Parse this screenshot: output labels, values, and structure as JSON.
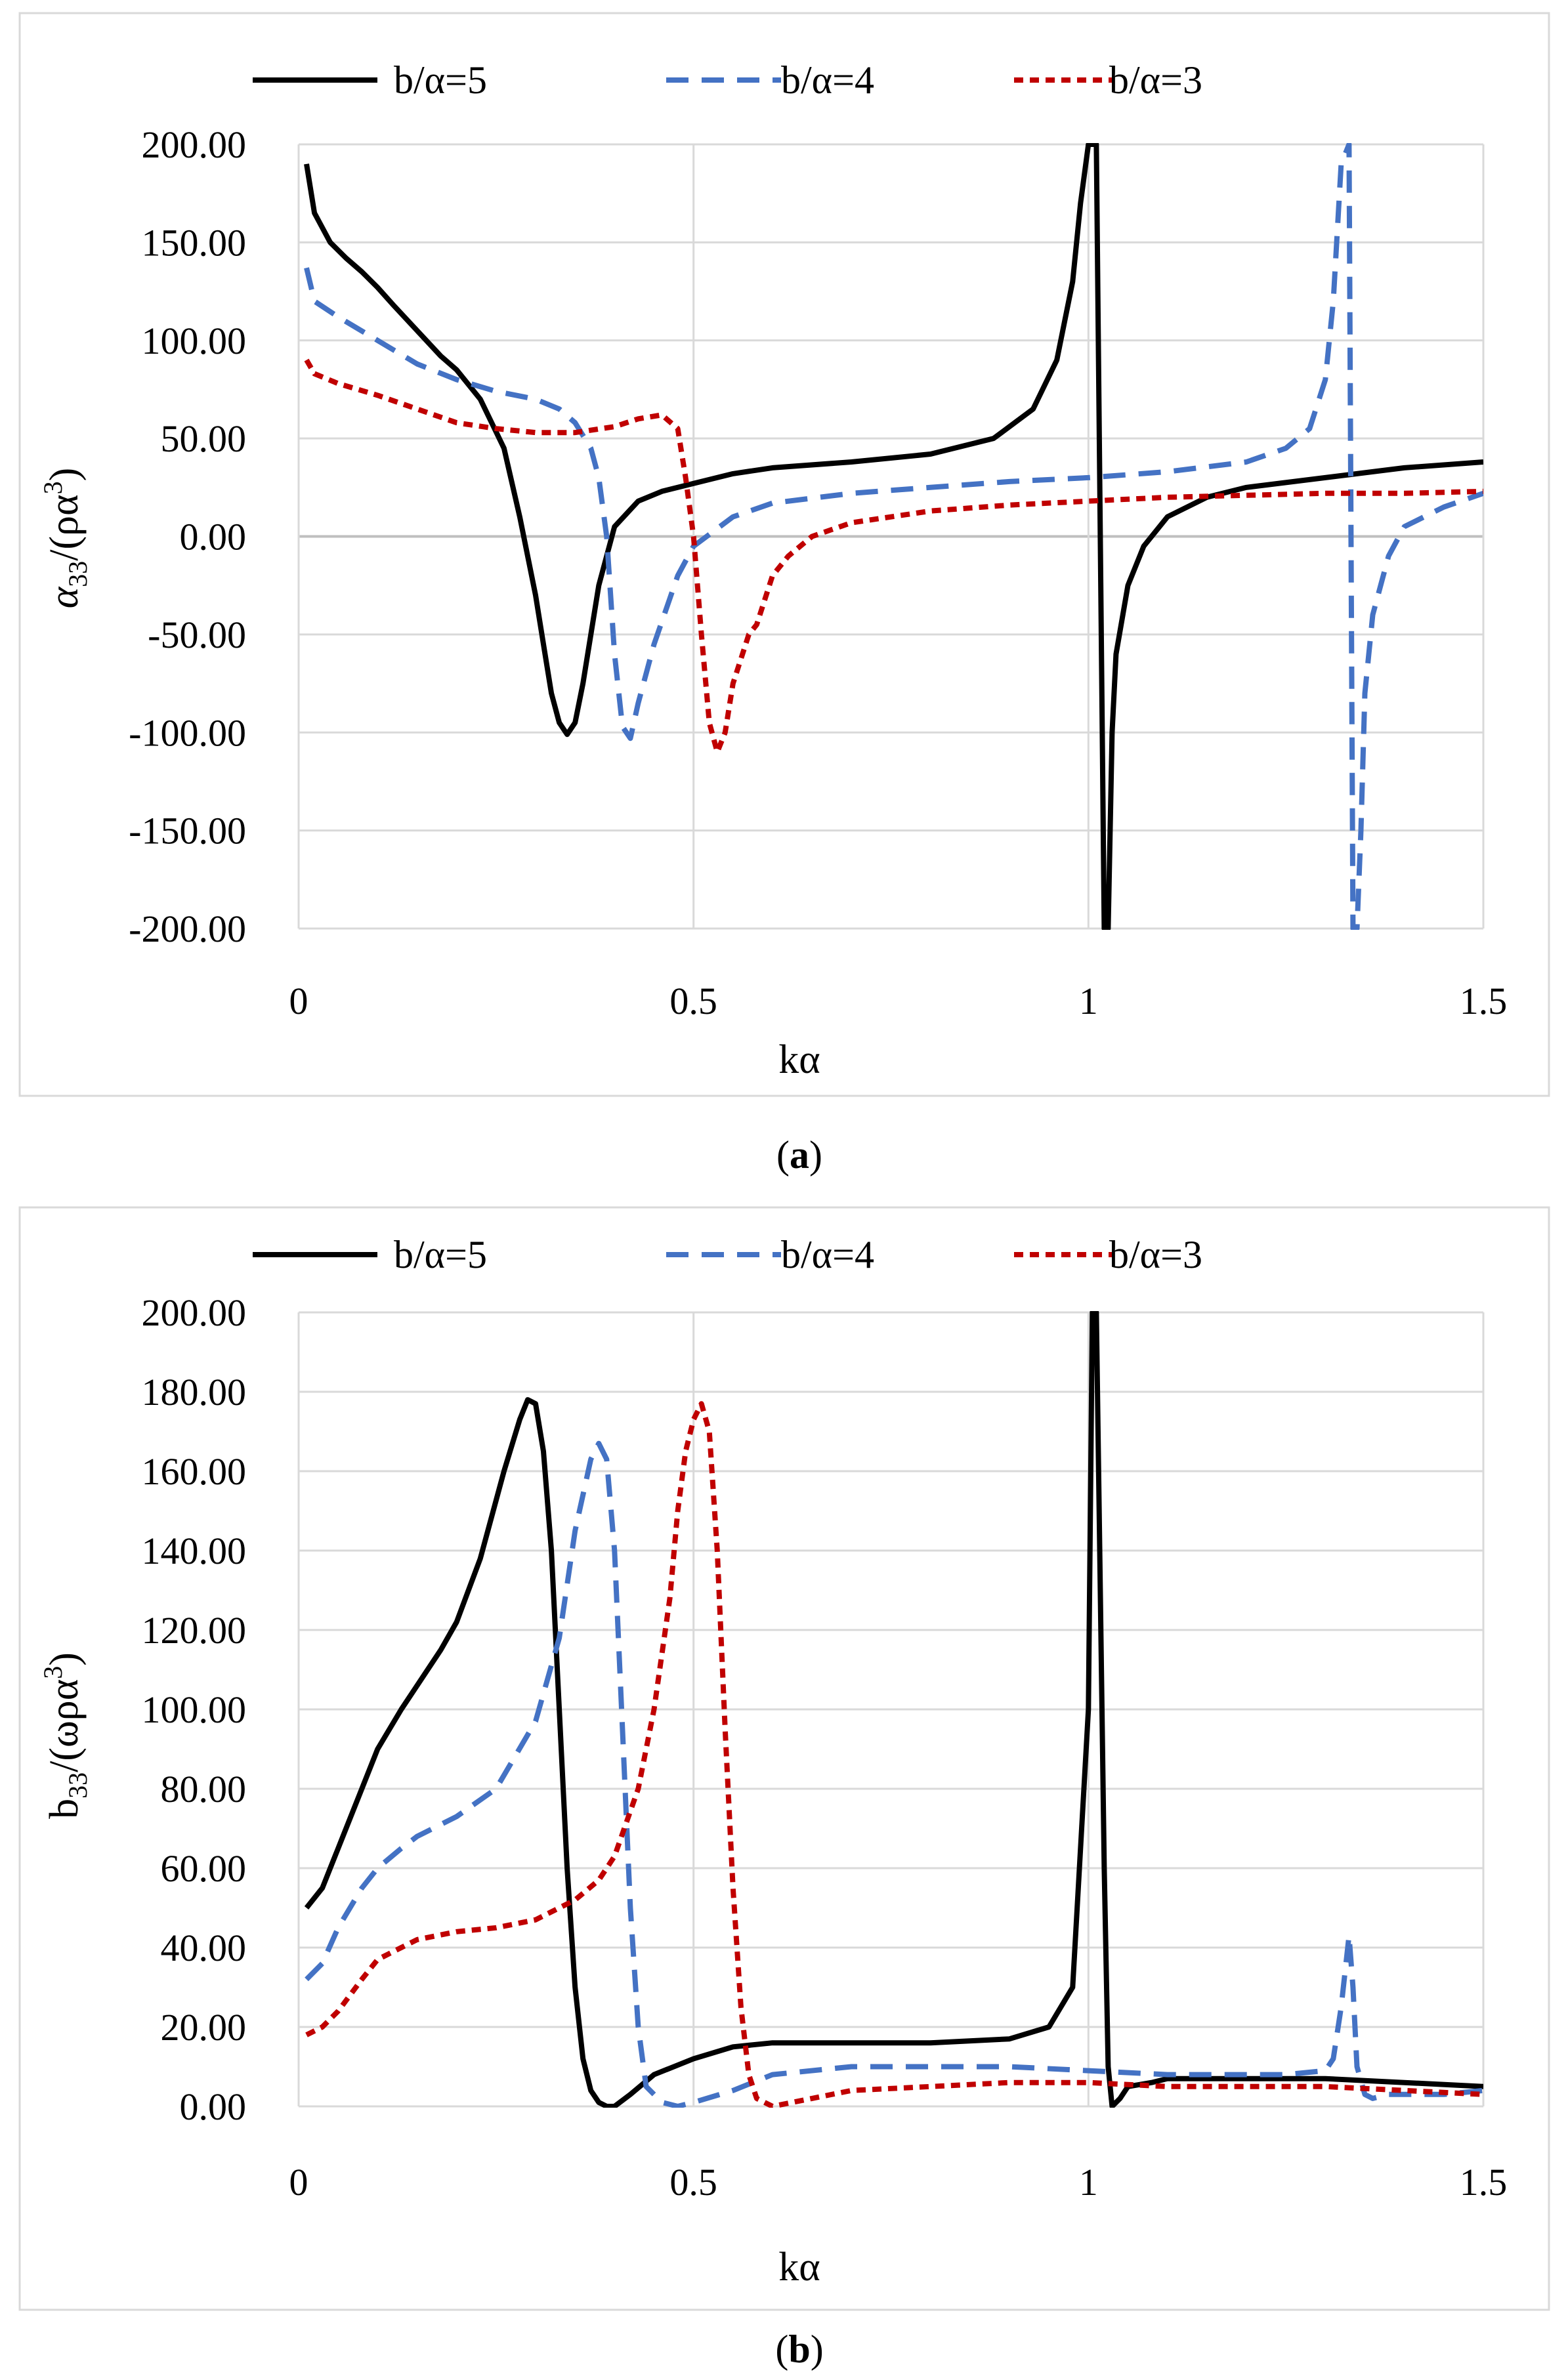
{
  "chart_data": [
    {
      "type": "line",
      "panel_label": "(a)",
      "label_letter": "a",
      "ylabel_main": "α",
      "ylabel_sub": "33",
      "ylabel_rest": "/(ρα",
      "ylabel_sup": "3",
      "ylabel_end": ")",
      "xlabel": "kα",
      "xlim": [
        0,
        1.5
      ],
      "ylim": [
        -200,
        200
      ],
      "xticks": [
        0,
        0.5,
        1,
        1.5
      ],
      "xtick_labels": [
        "0",
        "0.5",
        "1",
        "1.5"
      ],
      "yticks": [
        200,
        150,
        100,
        50,
        0,
        -50,
        -100,
        -150,
        -200
      ],
      "ytick_labels": [
        "200.00",
        "150.00",
        "100.00",
        "50.00",
        "0.00",
        "-50.00",
        "-100.00",
        "-150.00",
        "-200.00"
      ],
      "legend_position": "top",
      "series": [
        {
          "name": "b/α=5",
          "color": "#000000",
          "dash": "solid",
          "x": [
            0.01,
            0.02,
            0.04,
            0.06,
            0.08,
            0.1,
            0.12,
            0.15,
            0.18,
            0.2,
            0.23,
            0.26,
            0.28,
            0.3,
            0.31,
            0.32,
            0.33,
            0.34,
            0.35,
            0.36,
            0.38,
            0.4,
            0.43,
            0.46,
            0.5,
            0.55,
            0.6,
            0.7,
            0.8,
            0.88,
            0.93,
            0.96,
            0.98,
            0.99,
            1.0,
            1.005,
            1.01,
            1.02,
            1.025,
            1.03,
            1.035,
            1.05,
            1.07,
            1.1,
            1.15,
            1.2,
            1.3,
            1.4,
            1.5
          ],
          "y": [
            190,
            165,
            150,
            142,
            135,
            127,
            118,
            105,
            92,
            85,
            70,
            45,
            10,
            -30,
            -55,
            -80,
            -95,
            -101,
            -95,
            -75,
            -25,
            5,
            18,
            23,
            27,
            32,
            35,
            38,
            42,
            50,
            65,
            90,
            130,
            170,
            200,
            200,
            200,
            -200,
            -200,
            -100,
            -60,
            -25,
            -5,
            10,
            20,
            25,
            30,
            35,
            38
          ]
        },
        {
          "name": "b/α=4",
          "color": "#4472c4",
          "dash": "dash",
          "x": [
            0.01,
            0.02,
            0.05,
            0.1,
            0.15,
            0.2,
            0.25,
            0.3,
            0.33,
            0.35,
            0.37,
            0.38,
            0.39,
            0.4,
            0.41,
            0.42,
            0.43,
            0.45,
            0.48,
            0.5,
            0.55,
            0.6,
            0.7,
            0.8,
            0.9,
            1.0,
            1.1,
            1.2,
            1.25,
            1.28,
            1.3,
            1.31,
            1.32,
            1.33,
            1.335,
            1.34,
            1.345,
            1.35,
            1.36,
            1.38,
            1.4,
            1.45,
            1.5
          ],
          "y": [
            137,
            120,
            112,
            100,
            88,
            80,
            74,
            70,
            65,
            58,
            45,
            30,
            0,
            -60,
            -97,
            -103,
            -85,
            -55,
            -20,
            -5,
            10,
            17,
            22,
            25,
            28,
            30,
            33,
            38,
            45,
            55,
            80,
            120,
            190,
            200,
            -200,
            -200,
            -150,
            -80,
            -40,
            -10,
            5,
            15,
            22
          ]
        },
        {
          "name": "b/α=3",
          "color": "#c00000",
          "dash": "dot",
          "x": [
            0.01,
            0.02,
            0.05,
            0.1,
            0.15,
            0.2,
            0.25,
            0.3,
            0.35,
            0.4,
            0.43,
            0.46,
            0.48,
            0.49,
            0.5,
            0.51,
            0.52,
            0.53,
            0.54,
            0.55,
            0.57,
            0.58,
            0.6,
            0.62,
            0.65,
            0.7,
            0.8,
            0.9,
            1.0,
            1.1,
            1.2,
            1.3,
            1.4,
            1.5
          ],
          "y": [
            90,
            83,
            78,
            72,
            65,
            58,
            55,
            53,
            53,
            56,
            60,
            62,
            55,
            30,
            0,
            -50,
            -95,
            -110,
            -100,
            -75,
            -50,
            -45,
            -20,
            -10,
            0,
            7,
            13,
            16,
            18,
            20,
            21,
            22,
            22,
            23
          ]
        }
      ]
    },
    {
      "type": "line",
      "panel_label": "(b)",
      "label_letter": "b",
      "ylabel_main": "b",
      "ylabel_sub": "33",
      "ylabel_rest": "/(ωρα",
      "ylabel_sup": "3",
      "ylabel_end": ")",
      "xlabel": "kα",
      "xlim": [
        0,
        1.5
      ],
      "ylim": [
        0,
        200
      ],
      "xticks": [
        0,
        0.5,
        1,
        1.5
      ],
      "xtick_labels": [
        "0",
        "0.5",
        "1",
        "1.5"
      ],
      "yticks": [
        200,
        180,
        160,
        140,
        120,
        100,
        80,
        60,
        40,
        20,
        0
      ],
      "ytick_labels": [
        "200.00",
        "180.00",
        "160.00",
        "140.00",
        "120.00",
        "100.00",
        "80.00",
        "60.00",
        "40.00",
        "20.00",
        "0.00"
      ],
      "legend_position": "top",
      "series": [
        {
          "name": "b/α=5",
          "color": "#000000",
          "dash": "solid",
          "x": [
            0.01,
            0.03,
            0.05,
            0.08,
            0.1,
            0.13,
            0.15,
            0.18,
            0.2,
            0.23,
            0.26,
            0.28,
            0.29,
            0.3,
            0.31,
            0.32,
            0.33,
            0.34,
            0.35,
            0.36,
            0.37,
            0.38,
            0.39,
            0.4,
            0.42,
            0.45,
            0.5,
            0.55,
            0.6,
            0.7,
            0.8,
            0.9,
            0.95,
            0.98,
            1.0,
            1.005,
            1.01,
            1.02,
            1.025,
            1.03,
            1.04,
            1.05,
            1.08,
            1.1,
            1.2,
            1.3,
            1.4,
            1.5
          ],
          "y": [
            50,
            55,
            65,
            80,
            90,
            100,
            106,
            115,
            122,
            138,
            160,
            173,
            178,
            177,
            165,
            140,
            100,
            60,
            30,
            12,
            4,
            1,
            0,
            0,
            3,
            8,
            12,
            15,
            16,
            16,
            16,
            17,
            20,
            30,
            100,
            200,
            200,
            60,
            10,
            0,
            2,
            5,
            6,
            7,
            7,
            7,
            6,
            5
          ]
        },
        {
          "name": "b/α=4",
          "color": "#4472c4",
          "dash": "dash",
          "x": [
            0.01,
            0.03,
            0.05,
            0.08,
            0.1,
            0.13,
            0.15,
            0.2,
            0.25,
            0.3,
            0.33,
            0.35,
            0.37,
            0.38,
            0.39,
            0.4,
            0.41,
            0.42,
            0.43,
            0.44,
            0.46,
            0.48,
            0.5,
            0.55,
            0.6,
            0.7,
            0.8,
            0.9,
            1.0,
            1.1,
            1.2,
            1.25,
            1.3,
            1.31,
            1.32,
            1.33,
            1.335,
            1.34,
            1.35,
            1.36,
            1.38,
            1.4,
            1.45,
            1.5
          ],
          "y": [
            32,
            36,
            45,
            55,
            60,
            65,
            68,
            73,
            80,
            97,
            118,
            145,
            163,
            167,
            163,
            140,
            95,
            50,
            20,
            5,
            1,
            0,
            1,
            4,
            8,
            10,
            10,
            10,
            9,
            8,
            8,
            8,
            9,
            12,
            25,
            43,
            30,
            10,
            3,
            2,
            3,
            3,
            3,
            4
          ]
        },
        {
          "name": "b/α=3",
          "color": "#c00000",
          "dash": "dot",
          "x": [
            0.01,
            0.03,
            0.05,
            0.08,
            0.1,
            0.13,
            0.15,
            0.2,
            0.25,
            0.3,
            0.35,
            0.38,
            0.4,
            0.43,
            0.45,
            0.47,
            0.48,
            0.49,
            0.5,
            0.51,
            0.52,
            0.53,
            0.54,
            0.55,
            0.56,
            0.57,
            0.58,
            0.6,
            0.65,
            0.7,
            0.8,
            0.9,
            1.0,
            1.1,
            1.2,
            1.3,
            1.4,
            1.5
          ],
          "y": [
            18,
            20,
            24,
            32,
            37,
            40,
            42,
            44,
            45,
            47,
            52,
            57,
            63,
            80,
            100,
            128,
            150,
            165,
            173,
            177,
            170,
            140,
            95,
            55,
            25,
            8,
            2,
            0,
            2,
            4,
            5,
            6,
            6,
            5,
            5,
            5,
            4,
            3
          ]
        }
      ]
    }
  ]
}
